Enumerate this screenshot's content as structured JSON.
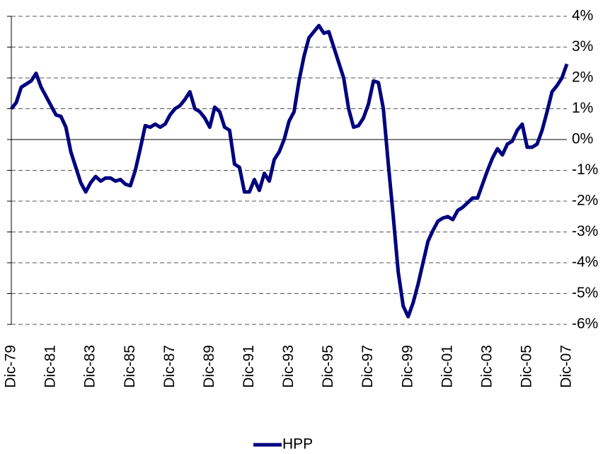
{
  "chart_data": {
    "type": "line",
    "categories": [
      "Dic-79",
      null,
      null,
      null,
      null,
      null,
      null,
      null,
      "Dic-81",
      null,
      null,
      null,
      null,
      null,
      null,
      null,
      "Dic-83",
      null,
      null,
      null,
      null,
      null,
      null,
      null,
      "Dic-85",
      null,
      null,
      null,
      null,
      null,
      null,
      null,
      "Dic-87",
      null,
      null,
      null,
      null,
      null,
      null,
      null,
      "Dic-89",
      null,
      null,
      null,
      null,
      null,
      null,
      null,
      "Dic-91",
      null,
      null,
      null,
      null,
      null,
      null,
      null,
      "Dic-93",
      null,
      null,
      null,
      null,
      null,
      null,
      null,
      "Dic-95",
      null,
      null,
      null,
      null,
      null,
      null,
      null,
      "Dic-97",
      null,
      null,
      null,
      null,
      null,
      null,
      null,
      "Dic-99",
      null,
      null,
      null,
      null,
      null,
      null,
      null,
      "Dic-01",
      null,
      null,
      null,
      null,
      null,
      null,
      null,
      "Dic-03",
      null,
      null,
      null,
      null,
      null,
      null,
      null,
      "Dic-05",
      null,
      null,
      null,
      null,
      null,
      null,
      null,
      "Dic-07"
    ],
    "series": [
      {
        "name": "HPP",
        "color": "#00007f",
        "values": [
          1.0,
          1.2,
          1.7,
          1.8,
          1.9,
          2.15,
          1.7,
          1.4,
          1.1,
          0.8,
          0.75,
          0.4,
          -0.4,
          -0.9,
          -1.4,
          -1.7,
          -1.4,
          -1.2,
          -1.35,
          -1.25,
          -1.25,
          -1.35,
          -1.3,
          -1.45,
          -1.5,
          -1.0,
          -0.3,
          0.45,
          0.4,
          0.5,
          0.4,
          0.5,
          0.8,
          1.0,
          1.1,
          1.3,
          1.55,
          1.0,
          0.9,
          0.7,
          0.4,
          1.05,
          0.9,
          0.4,
          0.3,
          -0.8,
          -0.9,
          -1.7,
          -1.7,
          -1.3,
          -1.65,
          -1.1,
          -1.35,
          -0.65,
          -0.4,
          0.0,
          0.6,
          0.9,
          1.9,
          2.7,
          3.3,
          3.5,
          3.7,
          3.45,
          3.5,
          3.0,
          2.5,
          2.0,
          1.0,
          0.4,
          0.45,
          0.7,
          1.15,
          1.9,
          1.85,
          1.0,
          -0.8,
          -2.5,
          -4.3,
          -5.4,
          -5.75,
          -5.3,
          -4.7,
          -4.0,
          -3.3,
          -2.95,
          -2.65,
          -2.55,
          -2.5,
          -2.6,
          -2.3,
          -2.2,
          -2.05,
          -1.9,
          -1.9,
          -1.45,
          -1.0,
          -0.6,
          -0.3,
          -0.5,
          -0.15,
          -0.05,
          0.3,
          0.5,
          -0.25,
          -0.25,
          -0.15,
          0.3,
          0.9,
          1.55,
          1.75,
          2.0,
          2.45
        ]
      }
    ],
    "ylim": [
      -6,
      4
    ],
    "yticks": [
      {
        "value": -6,
        "label": "-6%"
      },
      {
        "value": -5,
        "label": "-5%"
      },
      {
        "value": -4,
        "label": "-4%"
      },
      {
        "value": -3,
        "label": "-3%"
      },
      {
        "value": -2,
        "label": "-2%"
      },
      {
        "value": -1,
        "label": "-1%"
      },
      {
        "value": 0,
        "label": "0%"
      },
      {
        "value": 1,
        "label": "1%"
      },
      {
        "value": 2,
        "label": "2%"
      },
      {
        "value": 3,
        "label": "3%"
      },
      {
        "value": 4,
        "label": "4%"
      }
    ],
    "grid": true,
    "legend": "bottom"
  }
}
